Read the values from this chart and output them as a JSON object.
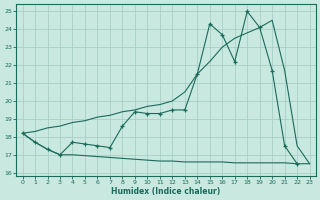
{
  "xlabel": "Humidex (Indice chaleur)",
  "xlim": [
    -0.5,
    23.5
  ],
  "ylim": [
    15.8,
    25.4
  ],
  "yticks": [
    16,
    17,
    18,
    19,
    20,
    21,
    22,
    23,
    24,
    25
  ],
  "xticks": [
    0,
    1,
    2,
    3,
    4,
    5,
    6,
    7,
    8,
    9,
    10,
    11,
    12,
    13,
    14,
    15,
    16,
    17,
    18,
    19,
    20,
    21,
    22,
    23
  ],
  "bg_color": "#c8e8e0",
  "line_color": "#1a6b5a",
  "grid_color": "#a8d0c8",
  "line1_x": [
    0,
    1,
    2,
    3,
    4,
    5,
    6,
    7,
    8,
    9,
    10,
    11,
    12,
    13,
    14,
    15,
    16,
    17,
    18,
    19,
    20,
    21,
    22
  ],
  "line1_y": [
    18.2,
    17.7,
    17.3,
    17.0,
    17.7,
    17.6,
    17.5,
    17.4,
    18.6,
    19.4,
    19.3,
    19.3,
    19.5,
    19.5,
    21.5,
    24.3,
    23.7,
    22.2,
    25.0,
    24.1,
    21.7,
    17.5,
    16.5
  ],
  "line2_x": [
    0,
    1,
    2,
    3,
    4,
    5,
    6,
    7,
    8,
    9,
    10,
    11,
    12,
    13,
    14,
    15,
    16,
    17,
    18,
    19,
    20,
    21,
    22,
    23
  ],
  "line2_y": [
    18.2,
    18.3,
    18.5,
    18.6,
    18.8,
    18.9,
    19.1,
    19.2,
    19.4,
    19.5,
    19.7,
    19.8,
    20.0,
    20.5,
    21.5,
    22.2,
    23.0,
    23.5,
    23.8,
    24.1,
    24.5,
    21.7,
    17.5,
    16.5
  ],
  "line3_x": [
    0,
    1,
    2,
    3,
    4,
    5,
    6,
    7,
    8,
    9,
    10,
    11,
    12,
    13,
    14,
    15,
    16,
    17,
    18,
    19,
    20,
    21,
    22,
    23
  ],
  "line3_y": [
    18.2,
    17.7,
    17.3,
    17.0,
    17.0,
    16.95,
    16.9,
    16.85,
    16.8,
    16.75,
    16.7,
    16.65,
    16.65,
    16.6,
    16.6,
    16.6,
    16.6,
    16.55,
    16.55,
    16.55,
    16.55,
    16.55,
    16.5,
    16.5
  ]
}
